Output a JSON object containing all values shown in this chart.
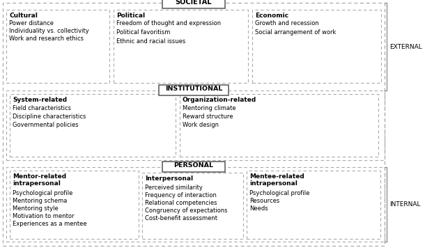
{
  "bg_color": "#ffffff",
  "dashed_color": "#aaaaaa",
  "solid_color": "#555555",
  "societal_label": "SOCIETAL",
  "institutional_label": "INSTITUTIONAL",
  "personal_label": "PERSONAL",
  "external_label": "EXTERNAL",
  "internal_label": "INTERNAL",
  "cultural_title": "Cultural",
  "cultural_items": [
    "Power distance",
    "Individuality vs. collectivity",
    "Work and research ethics"
  ],
  "political_title": "Political",
  "political_items": [
    "Freedom of thought and expression",
    "Political favoritism",
    "Ethnic and racial issues"
  ],
  "economic_title": "Economic",
  "economic_items": [
    "Growth and recession",
    "Social arrangement of work"
  ],
  "system_title": "System-related",
  "system_items": [
    "Field characteristics",
    "Discipline characteristics",
    "Governmental policies"
  ],
  "org_title": "Organization-related",
  "org_items": [
    "Mentoring climate",
    "Reward structure",
    "Work design"
  ],
  "mentor_title": "Mentor-related",
  "mentor_title2": "intrapersonal",
  "mentor_items": [
    "Psychological profile",
    "Mentoring schema",
    "Mentoring style",
    "Motivation to mentor",
    "Experiences as a mentee"
  ],
  "interpersonal_title": "Interpersonal",
  "interpersonal_items": [
    "Perceived similarity",
    "Frequency of interaction",
    "Relational competencies",
    "Congruency of expectations",
    "Cost-benefit assessment"
  ],
  "mentee_title": "Mentee-related",
  "mentee_title2": "intrapersonal",
  "mentee_items": [
    "Psychological profile",
    "Resources",
    "Needs"
  ]
}
